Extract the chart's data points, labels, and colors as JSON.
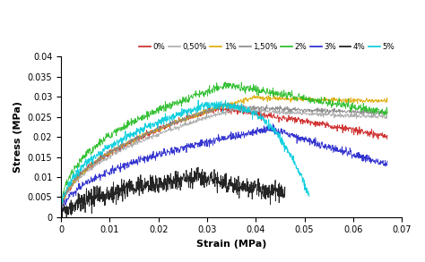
{
  "title": "",
  "xlabel": "Strain (MPa)",
  "ylabel": "Stress (MPa)",
  "xlim": [
    0,
    0.07
  ],
  "ylim": [
    0,
    0.04
  ],
  "xticks": [
    0,
    0.01,
    0.02,
    0.03,
    0.04,
    0.05,
    0.06,
    0.07
  ],
  "yticks": [
    0,
    0.005,
    0.01,
    0.015,
    0.02,
    0.025,
    0.03,
    0.035,
    0.04
  ],
  "legend_labels": [
    "0%",
    "0,50%",
    "1%",
    "1,50%",
    "2%",
    "3%",
    "4%",
    "5%"
  ],
  "curves": [
    {
      "label": "0%",
      "color": "#cc2222",
      "peak_strain": 0.032,
      "peak_stress": 0.027,
      "end_strain": 0.067,
      "end_stress": 0.02,
      "fall_shape": 1.2,
      "noise": 0.0004,
      "rise_exp": 0.45
    },
    {
      "label": "0,50%",
      "color": "#aaaaaa",
      "peak_strain": 0.036,
      "peak_stress": 0.027,
      "end_strain": 0.067,
      "end_stress": 0.025,
      "fall_shape": 0.7,
      "noise": 0.0003,
      "rise_exp": 0.45
    },
    {
      "label": "1%",
      "color": "#ddaa00",
      "peak_strain": 0.04,
      "peak_stress": 0.03,
      "end_strain": 0.067,
      "end_stress": 0.029,
      "fall_shape": 0.5,
      "noise": 0.0003,
      "rise_exp": 0.45
    },
    {
      "label": "1,50%",
      "color": "#888888",
      "peak_strain": 0.034,
      "peak_stress": 0.028,
      "end_strain": 0.067,
      "end_stress": 0.026,
      "fall_shape": 0.6,
      "noise": 0.0003,
      "rise_exp": 0.45
    },
    {
      "label": "2%",
      "color": "#22bb22",
      "peak_strain": 0.034,
      "peak_stress": 0.033,
      "end_strain": 0.067,
      "end_stress": 0.026,
      "fall_shape": 1.0,
      "noise": 0.0005,
      "rise_exp": 0.4
    },
    {
      "label": "3%",
      "color": "#2222cc",
      "peak_strain": 0.043,
      "peak_stress": 0.022,
      "end_strain": 0.067,
      "end_stress": 0.013,
      "fall_shape": 1.0,
      "noise": 0.0005,
      "rise_exp": 0.45
    },
    {
      "label": "4%",
      "color": "#111111",
      "peak_strain": 0.028,
      "peak_stress": 0.01,
      "end_strain": 0.046,
      "end_stress": 0.006,
      "fall_shape": 0.8,
      "noise": 0.0012,
      "rise_exp": 0.5
    },
    {
      "label": "5%",
      "color": "#00ccdd",
      "peak_strain": 0.03,
      "peak_stress": 0.028,
      "end_strain": 0.051,
      "end_stress": 0.005,
      "fall_shape": 3.0,
      "noise": 0.0005,
      "rise_exp": 0.42
    }
  ]
}
